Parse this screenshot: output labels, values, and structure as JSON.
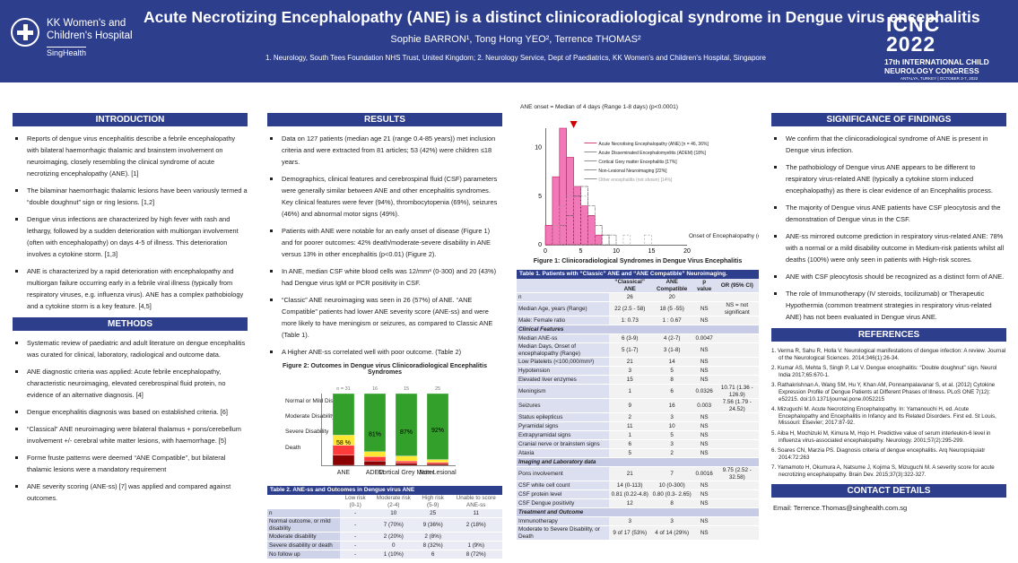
{
  "header": {
    "title": "Acute Necrotizing Encephalopathy (ANE) is a distinct clinicoradiological syndrome in Dengue virus encephalitis",
    "authors": "Sophie BARRON¹, Tong Hong YEO², Terrence THOMAS²",
    "affiliations": "1. Neurology, South Tees Foundation NHS Trust, United Kingdom; 2. Neurology Service, Dept of Paediatrics, KK Women's and Children's Hospital, Singapore"
  },
  "logo": {
    "line1": "KK Women's and",
    "line2": "Children's Hospital",
    "sub": "SingHealth"
  },
  "conference": {
    "name": "ICNC",
    "year": "2022",
    "line1": "17th INTERNATIONAL CHILD",
    "line2": "NEUROLOGY CONGRESS",
    "venue": "ANTALYA, TURKEY | OCTOBER 3-7, 2022"
  },
  "introduction": {
    "title": "INTRODUCTION",
    "items": [
      "Reports of dengue virus encephalitis describe a febrile encephalopathy with bilateral haemorrhagic thalamic and brainstem involvement on neuroimaging, closely resembling the clinical syndrome of acute necrotizing encephalopathy (ANE). [1]",
      "The bilaminar haemorrhagic thalamic lesions have been variously termed a “double doughnut” sign or ring lesions. [1,2]",
      "Dengue virus infections are characterized by high fever with rash and lethargy, followed by a sudden deterioration with multiorgan involvement (often with encephalopathy) on days 4-5 of illness. This deterioration involves a cytokine storm. [1,3]",
      "ANE is characterized by a rapid deterioration with encephalopathy and multiorgan failure occurring early in a febrile viral illness (typically from respiratory viruses, e.g. influenza virus). ANE has a complex pathobiology and a cytokine storm is a key feature. [4,5]"
    ]
  },
  "methods": {
    "title": "METHODS",
    "items": [
      "Systematic review of paediatric and adult literature on dengue encephalitis was curated for clinical, laboratory, radiological and outcome data.",
      "ANE diagnostic criteria was applied: Acute febrile encephalopathy, characteristic neuroimaging, elevated cerebrospinal fluid protein, no evidence of an alternative diagnosis. [4]",
      "Dengue encephalitis diagnosis was based on established criteria. [6]",
      "“Classical” ANE neuroimaging were bilateral thalamus + pons/cerebellum involvement +/- cerebral white matter lesions, with haemorrhage. [5]",
      "Forme fruste patterns were deemed “ANE Compatible”, but bilateral thalamic lesions were a mandatory requirement",
      "ANE severity scoring (ANE-ss) [7] was applied and compared against outcomes."
    ]
  },
  "results": {
    "title": "RESULTS",
    "items": [
      "Data on 127 patients (median age 21 (range 0.4-85 years)) met inclusion criteria and were extracted from 81 articles; 53 (42%) were children ≤18 years.",
      "Demographics, clinical features and cerebrospinal fluid (CSF) parameters were generally similar between ANE and other encephalitis syndromes. Key clinical features were fever (94%), thrombocytopenia (69%), seizures (46%) and abnormal motor signs (49%).",
      "Patients with ANE were notable for an early onset of disease (Figure 1) and for poorer outcomes: 42% death/moderate-severe disability in ANE versus 13% in other encephalitis (p<0.01) (Figure 2).",
      "In ANE, median CSF white blood cells was 12/mm³ (0-300) and 20 (43%) had Dengue virus IgM or PCR positivity in CSF.",
      "“Classic” ANE neuroimaging was seen in 26 (57%) of ANE. “ANE Compatible” patients had lower ANE severity score (ANE-ss) and were more likely to have meningism or seizures, as compared to Classic ANE (Table 1).",
      "A Higher ANE-ss correlated well with poor outcome. (Table 2)"
    ]
  },
  "figure2": {
    "caption": "Figure 2: Outcomes in Dengue virus Clinicoradiological Encephalitis Syndromes",
    "legend": [
      "Normal or Mild Disability",
      "Moderate Disability",
      "Severe Disability",
      "Death"
    ],
    "ns": [
      "n = 31",
      "16",
      "15",
      "25"
    ],
    "xlabels": [
      "ANE",
      "ADEM",
      "Cortical Grey Matter",
      "Non-Lesional"
    ],
    "pct": [
      "58 %",
      "81%",
      "87%",
      "92%"
    ],
    "stack": [
      [
        0.58,
        0.14,
        0.14,
        0.14
      ],
      [
        0.81,
        0.07,
        0.06,
        0.06
      ],
      [
        0.87,
        0.07,
        0.03,
        0.03
      ],
      [
        0.92,
        0.04,
        0.02,
        0.02
      ]
    ],
    "colors": [
      "#33a02c",
      "#ffe633",
      "#ff3b3b",
      "#8b0000"
    ]
  },
  "table2": {
    "title": "Table 2.  ANE-ss and Outcomes in Dengue virus ANE",
    "header": [
      "",
      "Low risk (0-1)",
      "Moderate risk (2-4)",
      "High risk (5-9)",
      "Unable to score ANE-ss"
    ],
    "rows": [
      [
        "n",
        "-",
        "10",
        "25",
        "11"
      ],
      [
        "Normal outcome, or mild disability",
        "-",
        "7 (70%)",
        "9 (36%)",
        "2 (18%)"
      ],
      [
        "Moderate disability",
        "-",
        "2 (20%)",
        "2 (8%)",
        ""
      ],
      [
        "Severe disability or death",
        "-",
        "0",
        "8 (32%)",
        "1 (9%)"
      ],
      [
        "No follow up",
        "-",
        "1 (10%)",
        "6",
        "8 (72%)"
      ]
    ]
  },
  "figure1": {
    "annotation": "ANE onset = Median of 4 days (Range 1-8 days) (p<0.0001)",
    "caption": "Figure 1: Clinicoradiological Syndromes in Dengue Virus Encephalitis",
    "yticks": [
      "10",
      "5",
      "0"
    ],
    "xticks": [
      "0",
      "5",
      "10",
      "15",
      "20"
    ],
    "xlabel": "Onset of Encephalopathy (days)",
    "legend": [
      "Acute Necrotising Encephalopathy (ANE)  [n = 46, 36%]",
      "Acute Disseminated Encephalomyelitis (ADEM)  [18%]",
      "Cortical Grey matter Encephalitis  [17%]",
      "Non-Lesional Neuroimaging  [22%]",
      "Other encephalitis (not shown)  [14%]"
    ],
    "chart_data": {
      "type": "bar",
      "series": [
        {
          "name": "ANE",
          "x": [
            1,
            2,
            3,
            4,
            5,
            6,
            7,
            8
          ],
          "values": [
            2,
            7,
            12,
            9,
            6,
            4,
            3,
            1
          ]
        },
        {
          "name": "ADEM",
          "x": [
            4,
            5,
            6,
            7,
            8,
            9
          ],
          "values": [
            3,
            5,
            6,
            4,
            2,
            1
          ]
        },
        {
          "name": "Cortical Grey matter",
          "x": [
            3,
            4,
            5,
            6,
            7,
            8,
            9,
            10
          ],
          "values": [
            2,
            3,
            5,
            6,
            3,
            2,
            1,
            1
          ]
        },
        {
          "name": "Non-Lesional",
          "x": [
            2,
            3,
            4,
            5,
            6,
            7,
            8,
            10,
            12,
            15
          ],
          "values": [
            2,
            4,
            5,
            6,
            5,
            4,
            2,
            1,
            1,
            1
          ]
        }
      ],
      "xlim": [
        0,
        20
      ],
      "ylim": [
        0,
        12
      ]
    }
  },
  "table1": {
    "title": "Table 1. Patients with “Classic” ANE and “ANE Compatible” Neuroimaging.",
    "header": [
      "",
      "“Classical” ANE",
      "ANE Compatible",
      "p value",
      "OR (95% CI)"
    ],
    "rows": [
      {
        "c": [
          "n",
          "26",
          "20",
          "",
          ""
        ]
      },
      {
        "c": [
          "Median Age, years (Range)",
          "22 (2.5 - 58)",
          "18 (5 -55)",
          "NS",
          "NS = not significant"
        ]
      },
      {
        "c": [
          "Male: Female ratio",
          "1: 0.73",
          "1 : 0.67",
          "NS",
          ""
        ]
      },
      {
        "sec": "Clinical Features"
      },
      {
        "c": [
          "Median ANE-ss",
          "6 (3-9)",
          "4 (2-7)",
          "0.0047",
          ""
        ]
      },
      {
        "c": [
          "Median Days, Onset of encephalopathy (Range)",
          "5 (1-7)",
          "3 (1-8)",
          "NS",
          ""
        ]
      },
      {
        "c": [
          "Low Platelets (<100,000/mm³)",
          "21",
          "14",
          "NS",
          ""
        ]
      },
      {
        "c": [
          "Hypotension",
          "3",
          "5",
          "NS",
          ""
        ]
      },
      {
        "c": [
          "Elevated liver enzymes",
          "15",
          "8",
          "NS",
          ""
        ]
      },
      {
        "c": [
          "Meningism",
          "1",
          "6",
          "0.0326",
          "10.71 (1.36 - 126.9)"
        ]
      },
      {
        "c": [
          "Seizures",
          "9",
          "16",
          "0.003",
          "7.56 (1.79 - 24.52)"
        ]
      },
      {
        "c": [
          "Status epilepticus",
          "2",
          "3",
          "NS",
          ""
        ]
      },
      {
        "c": [
          "Pyramidal signs",
          "11",
          "10",
          "NS",
          ""
        ]
      },
      {
        "c": [
          "Extrapyramidal signs",
          "1",
          "5",
          "NS",
          ""
        ]
      },
      {
        "c": [
          "Cranial nerve or brainstem signs",
          "6",
          "3",
          "NS",
          ""
        ]
      },
      {
        "c": [
          "Ataxia",
          "5",
          "2",
          "NS",
          ""
        ]
      },
      {
        "sec": "Imaging and Laboratory data"
      },
      {
        "c": [
          "Pons involvement",
          "21",
          "7",
          "0.0016",
          "9.75 (2.52 - 32.58)"
        ]
      },
      {
        "c": [
          "CSF white cell count",
          "14 (0-113)",
          "10 (0-300)",
          "NS",
          ""
        ]
      },
      {
        "c": [
          "CSF protein level",
          "0.81 (0.22-4.8)",
          "0.80 (0.3- 2.65)",
          "NS",
          ""
        ]
      },
      {
        "c": [
          "CSF Dengue positivity",
          "12",
          "8",
          "NS",
          ""
        ]
      },
      {
        "sec": "Treatment and Outcome"
      },
      {
        "c": [
          "Immunotherapy",
          "3",
          "3",
          "NS",
          ""
        ]
      },
      {
        "c": [
          "Moderate to Severe Disability, or Death",
          "9 of 17 (53%)",
          "4 of 14 (29%)",
          "NS",
          ""
        ]
      }
    ]
  },
  "significance": {
    "title": "SIGNIFICANCE OF FINDINGS",
    "items": [
      "We confirm that the clinicoradiological syndrome of ANE is present in Dengue virus infection.",
      "The pathobiology of Dengue virus ANE appears to be different to respiratory virus-related ANE (typically a cytokine storm induced encephalopathy) as there is clear evidence of an Encephalitis process.",
      "The majority of Dengue virus ANE patients have CSF pleocytosis and the demonstration of Dengue virus in the CSF.",
      "ANE-ss mirrored outcome prediction in respiratory virus-related ANE: 78% with a normal or a mild disability outcome in Medium-risk patients whilst all deaths (100%) were only seen in patients with High-risk scores.",
      "ANE with CSF pleocytosis should be recognized as a distinct form of ANE.",
      "The role of Immunotherapy (IV steroids, tocilizumab) or Therapeutic Hypothermia (common treatment strategies in respiratory virus-related ANE) has not been evaluated in Dengue virus ANE."
    ]
  },
  "references": {
    "title": "REFERENCES",
    "items": [
      "1. Verma R, Sahu R, Holla V. Neurological manifestations of dengue infection: A review. Journal of the Neurological Sciences. 2014;346(1):26-34.",
      "2. Kumar AS, Mehta S, Singh P, Lal V. Dengue encephalitis: “Double doughnut” sign. Neurol India 2017;65:670-1.",
      "3. Rathakrishnan A, Wang SM, Hu Y, Khan AM, Ponnampalavanar S, et al. (2012) Cytokine Expression Profile of Dengue Patients at Different Phases of Illness. PLoS ONE 7(12): e52215. doi:10.1371/journal.pone.0052215",
      "4. Mizuguchi M. Acute Necrotizing Encephalopathy. In: Yamanouchi H, ed. Acute Encephalopathy and Encephalitis in Infancy and Its Related Disorders. First ed. St Louis, Missouri: Elsevier; 2017:87-92.",
      "5. Aiba H, Mochizuki M, Kimura M, Hojo H. Predictive value of serum interleukin-6 level in influenza virus-associated encephalopathy. Neurology. 2001;57(2):295-299.",
      "6. Soares CN, Marzia PS. Diagnosis criteria of dengue encephalitis. Arq Neuropsiquiatr 2014:72:263",
      "7. Yamamoto H, Okumura A, Natsume J, Kojima S, Mizuguchi M. A severity score for acute necrotizing encephalopathy. Brain Dev. 2015;37(3):322-327."
    ]
  },
  "contact": {
    "title": "CONTACT DETAILS",
    "email": "Email: Terrence.Thomas@singhealth.com.sg"
  }
}
